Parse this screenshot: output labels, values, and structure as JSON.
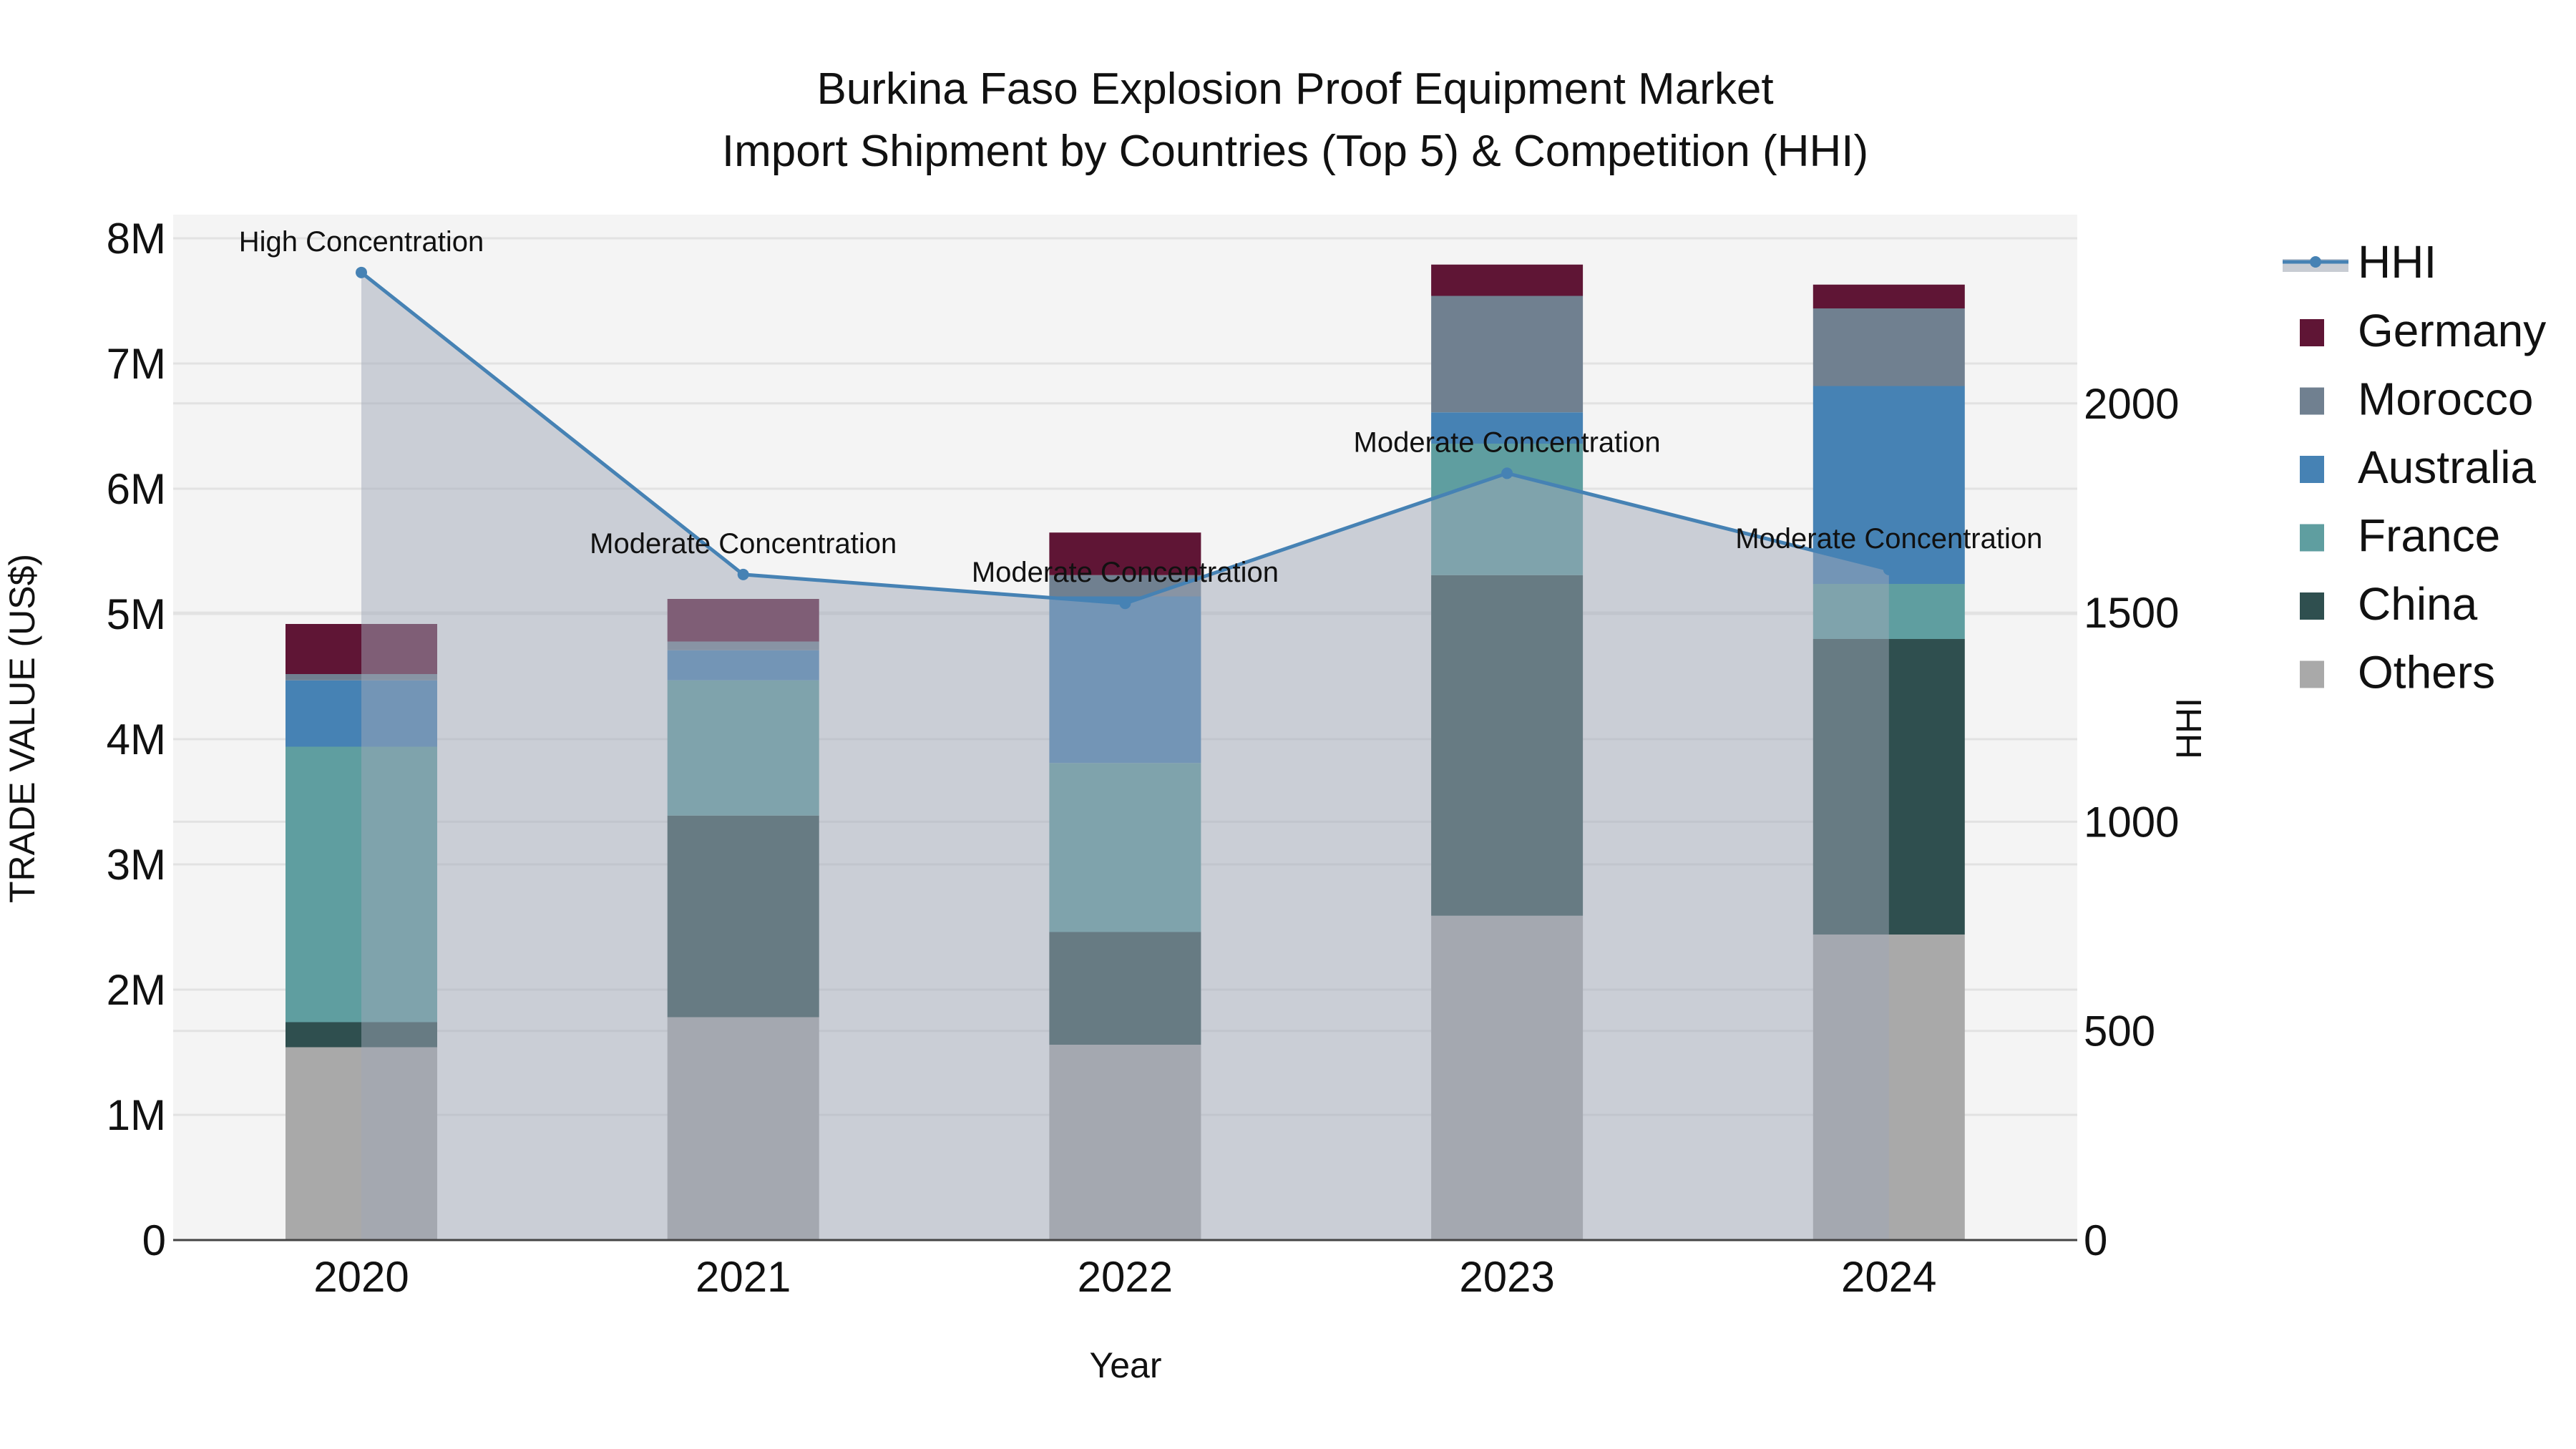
{
  "chart_data": {
    "type": "bar",
    "title_line1": "Burkina Faso Explosion Proof Equipment Market",
    "title_line2": "Import Shipment by Countries (Top 5) & Competition (HHI)",
    "xlabel": "Year",
    "ylabel": "TRADE VALUE (US$)",
    "y2label": "HHI",
    "categories": [
      "2020",
      "2021",
      "2022",
      "2023",
      "2024"
    ],
    "ylim": [
      0,
      8200000
    ],
    "y2lim": [
      0,
      2450
    ],
    "yticks": [
      {
        "v": 0,
        "label": "0"
      },
      {
        "v": 1000000,
        "label": "1M"
      },
      {
        "v": 2000000,
        "label": "2M"
      },
      {
        "v": 3000000,
        "label": "3M"
      },
      {
        "v": 4000000,
        "label": "4M"
      },
      {
        "v": 5000000,
        "label": "5M"
      },
      {
        "v": 6000000,
        "label": "6M"
      },
      {
        "v": 7000000,
        "label": "7M"
      },
      {
        "v": 8000000,
        "label": "8M"
      }
    ],
    "y2ticks": [
      {
        "v": 0,
        "label": "0"
      },
      {
        "v": 500,
        "label": "500"
      },
      {
        "v": 1000,
        "label": "1000"
      },
      {
        "v": 1500,
        "label": "1500"
      },
      {
        "v": 2000,
        "label": "2000"
      }
    ],
    "series": [
      {
        "name": "Others",
        "color": "#a9a9a9",
        "values": [
          1540000,
          1780000,
          1560000,
          2590000,
          2440000
        ]
      },
      {
        "name": "China",
        "color": "#2f4f4f",
        "values": [
          200000,
          1610000,
          900000,
          2720000,
          2360000
        ]
      },
      {
        "name": "France",
        "color": "#5f9ea0",
        "values": [
          2200000,
          1080000,
          1350000,
          1050000,
          440000
        ]
      },
      {
        "name": "Australia",
        "color": "#4682b4",
        "values": [
          530000,
          240000,
          1330000,
          250000,
          1580000
        ]
      },
      {
        "name": "Morocco",
        "color": "#708090",
        "values": [
          50000,
          70000,
          170000,
          930000,
          620000
        ]
      },
      {
        "name": "Germany",
        "color": "#5f1535",
        "values": [
          400000,
          340000,
          340000,
          250000,
          190000
        ]
      }
    ],
    "hhi": {
      "name": "HHI",
      "color": "#4682b4",
      "values": [
        2313,
        1591,
        1522,
        1833,
        1603
      ],
      "annotations": [
        "High Concentration",
        "Moderate Concentration",
        "Moderate Concentration",
        "Moderate Concentration",
        "Moderate Concentration"
      ]
    },
    "legend_position": "right",
    "legend": [
      "HHI",
      "Germany",
      "Morocco",
      "Australia",
      "France",
      "China",
      "Others"
    ],
    "grid": true
  }
}
